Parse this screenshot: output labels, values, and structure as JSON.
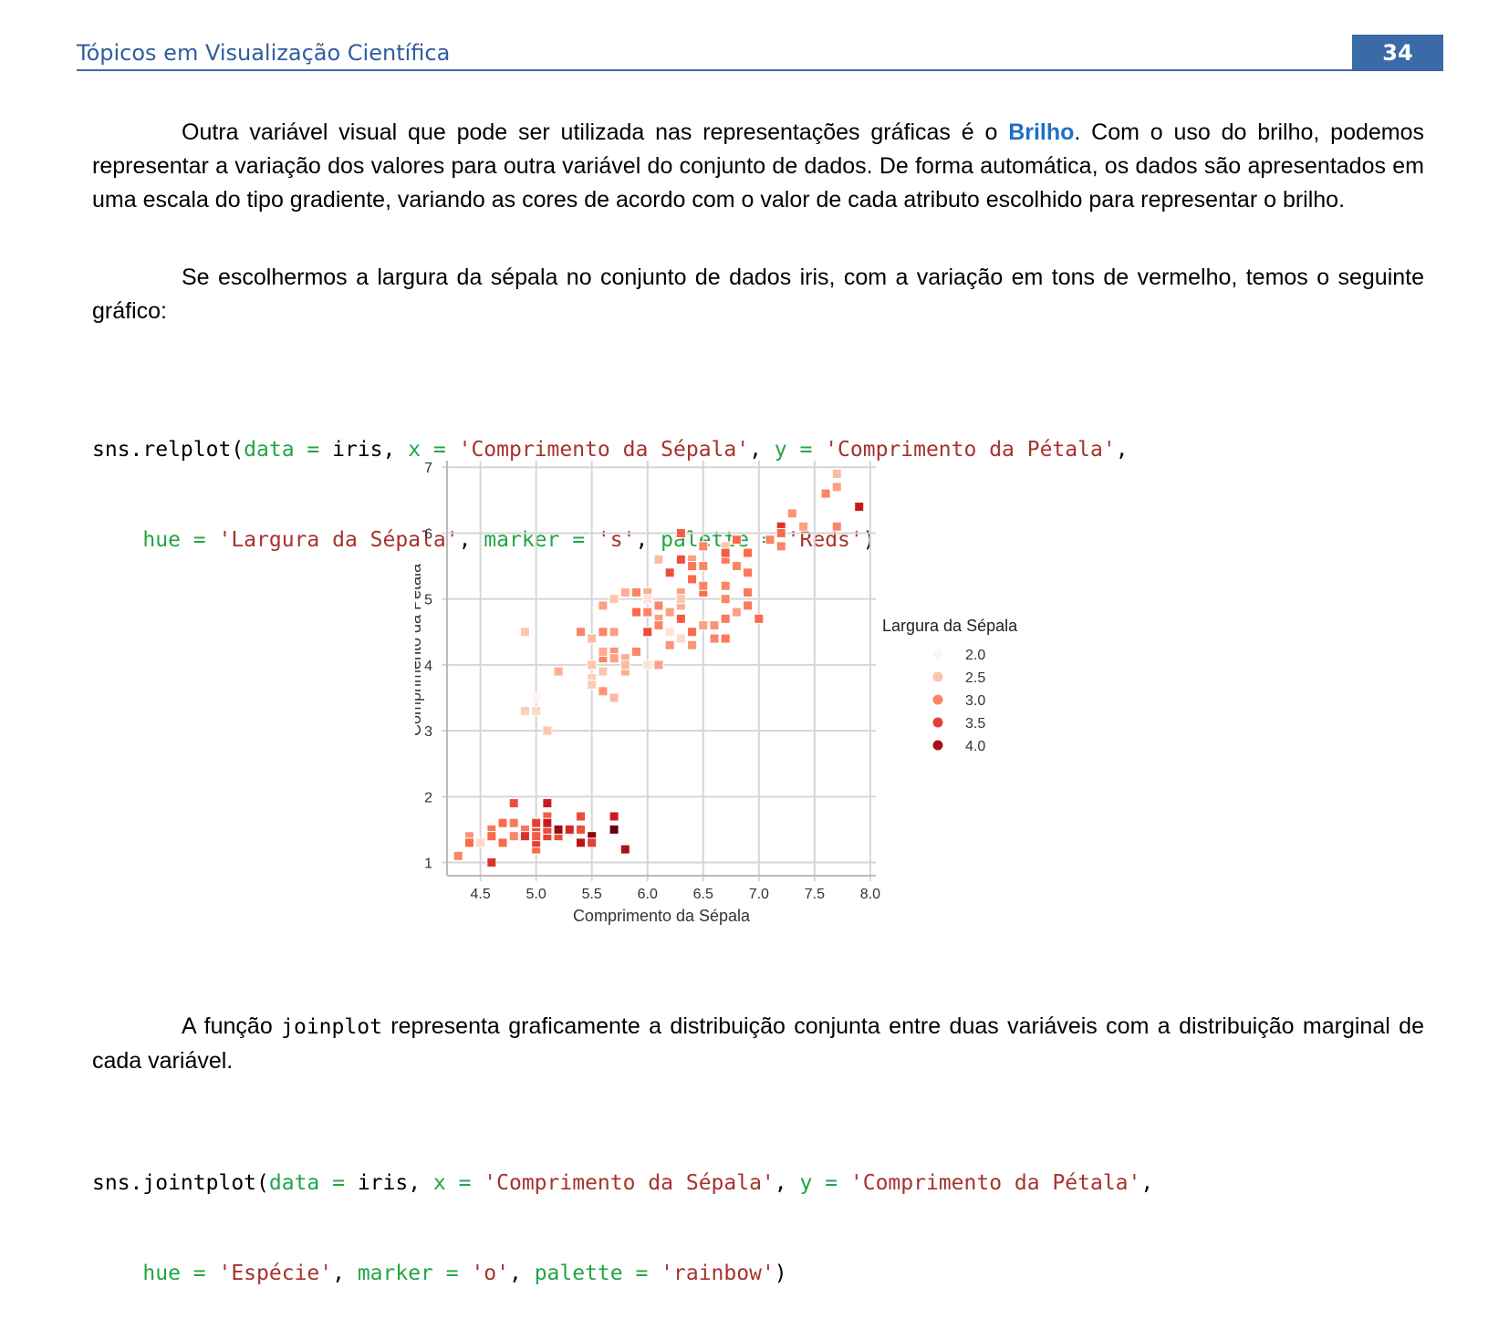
{
  "header": {
    "title": "Tópicos em Visualização Científica",
    "page_number": "34"
  },
  "paragraph1": {
    "before": "Outra variável visual que pode ser utilizada nas representações gráficas é o ",
    "highlight": "Brilho",
    "after": ". Com o uso do brilho, podemos representar a variação dos valores para outra variável do conjunto de dados. De forma automática, os dados são apresentados em uma escala do tipo gradiente, variando as cores de acordo com o valor de cada atributo escolhido para representar o brilho."
  },
  "paragraph2": "Se escolhermos a largura da sépala no conjunto de dados iris, com a variação em tons de vermelho, temos o seguinte gráfico:",
  "code1": {
    "line1": [
      {
        "t": "sns.relplot(",
        "c": "fn"
      },
      {
        "t": "data = ",
        "c": "kw"
      },
      {
        "t": "iris, ",
        "c": "fn"
      },
      {
        "t": "x = ",
        "c": "kw"
      },
      {
        "t": "'Comprimento da Sépala'",
        "c": "str"
      },
      {
        "t": ", ",
        "c": "fn"
      },
      {
        "t": "y = ",
        "c": "kw"
      },
      {
        "t": "'Comprimento da Pétala'",
        "c": "str"
      },
      {
        "t": ",",
        "c": "fn"
      }
    ],
    "line2": [
      {
        "t": "    ",
        "c": "fn"
      },
      {
        "t": "hue = ",
        "c": "kw"
      },
      {
        "t": "'Largura da Sépala'",
        "c": "str"
      },
      {
        "t": ", ",
        "c": "fn"
      },
      {
        "t": "marker = ",
        "c": "kw"
      },
      {
        "t": "'s'",
        "c": "str"
      },
      {
        "t": ", ",
        "c": "fn"
      },
      {
        "t": "palette = ",
        "c": "kw"
      },
      {
        "t": "'Reds'",
        "c": "str"
      },
      {
        "t": ")",
        "c": "fn"
      }
    ]
  },
  "paragraph3": {
    "before": "A função ",
    "code": "joinplot",
    "after": " representa graficamente a distribuição conjunta entre duas variáveis com a distribuição marginal de cada variável."
  },
  "code2": {
    "line1": [
      {
        "t": "sns.jointplot(",
        "c": "fn"
      },
      {
        "t": "data = ",
        "c": "kw"
      },
      {
        "t": "iris, ",
        "c": "fn"
      },
      {
        "t": "x = ",
        "c": "kw"
      },
      {
        "t": "'Comprimento da Sépala'",
        "c": "str"
      },
      {
        "t": ", ",
        "c": "fn"
      },
      {
        "t": "y = ",
        "c": "kw"
      },
      {
        "t": "'Comprimento da Pétala'",
        "c": "str"
      },
      {
        "t": ",",
        "c": "fn"
      }
    ],
    "line2": [
      {
        "t": "    ",
        "c": "fn"
      },
      {
        "t": "hue = ",
        "c": "kw"
      },
      {
        "t": "'Espécie'",
        "c": "str"
      },
      {
        "t": ", ",
        "c": "fn"
      },
      {
        "t": "marker = ",
        "c": "kw"
      },
      {
        "t": "'o'",
        "c": "str"
      },
      {
        "t": ", ",
        "c": "fn"
      },
      {
        "t": "palette = ",
        "c": "kw"
      },
      {
        "t": "'rainbow'",
        "c": "str"
      },
      {
        "t": ")",
        "c": "fn"
      }
    ]
  },
  "chart_data": {
    "type": "scatter",
    "marker": "square",
    "palette": "Reds",
    "xlabel": "Comprimento da Sépala",
    "ylabel": "Comprimento da Pétala",
    "xlim": [
      4.2,
      8.05
    ],
    "ylim": [
      0.8,
      7.1
    ],
    "xticks": [
      4.5,
      5.0,
      5.5,
      6.0,
      6.5,
      7.0,
      7.5,
      8.0
    ],
    "xtick_labels": [
      "4.5",
      "5.0",
      "5.5",
      "6.0",
      "6.5",
      "7.0",
      "7.5",
      "8.0"
    ],
    "yticks": [
      1,
      2,
      3,
      4,
      5,
      6,
      7
    ],
    "ytick_labels": [
      "1",
      "2",
      "3",
      "4",
      "5",
      "6",
      "7"
    ],
    "grid": true,
    "legend": {
      "title": "Largura da Sépala",
      "placement": "right",
      "entries": [
        {
          "label": "2.0",
          "value": 2.0
        },
        {
          "label": "2.5",
          "value": 2.5
        },
        {
          "label": "3.0",
          "value": 3.0
        },
        {
          "label": "3.5",
          "value": 3.5
        },
        {
          "label": "4.0",
          "value": 4.0
        }
      ]
    },
    "color_scale": {
      "min": 2.0,
      "max": 4.4,
      "colors": [
        "#fff5f0",
        "#fcbba1",
        "#fb6a4a",
        "#cb181d",
        "#67000d"
      ]
    },
    "points": [
      [
        5.1,
        1.4,
        3.5
      ],
      [
        4.9,
        1.4,
        3.0
      ],
      [
        4.7,
        1.3,
        3.2
      ],
      [
        4.6,
        1.5,
        3.1
      ],
      [
        5.0,
        1.4,
        3.6
      ],
      [
        5.4,
        1.7,
        3.9
      ],
      [
        4.6,
        1.4,
        3.4
      ],
      [
        5.0,
        1.5,
        3.4
      ],
      [
        4.4,
        1.4,
        2.9
      ],
      [
        4.9,
        1.5,
        3.1
      ],
      [
        5.4,
        1.5,
        3.7
      ],
      [
        4.8,
        1.6,
        3.4
      ],
      [
        4.8,
        1.4,
        3.0
      ],
      [
        4.3,
        1.1,
        3.0
      ],
      [
        5.8,
        1.2,
        4.0
      ],
      [
        5.7,
        1.5,
        4.4
      ],
      [
        5.4,
        1.3,
        3.9
      ],
      [
        5.1,
        1.4,
        3.5
      ],
      [
        5.7,
        1.7,
        3.8
      ],
      [
        5.1,
        1.5,
        3.8
      ],
      [
        5.4,
        1.7,
        3.4
      ],
      [
        5.1,
        1.5,
        3.7
      ],
      [
        4.6,
        1.0,
        3.6
      ],
      [
        5.1,
        1.7,
        3.3
      ],
      [
        4.8,
        1.9,
        3.4
      ],
      [
        5.0,
        1.6,
        3.0
      ],
      [
        5.0,
        1.6,
        3.4
      ],
      [
        5.2,
        1.5,
        3.5
      ],
      [
        5.2,
        1.4,
        3.4
      ],
      [
        4.7,
        1.6,
        3.2
      ],
      [
        4.8,
        1.6,
        3.1
      ],
      [
        5.4,
        1.5,
        3.4
      ],
      [
        5.2,
        1.5,
        4.1
      ],
      [
        5.5,
        1.4,
        4.2
      ],
      [
        4.9,
        1.5,
        3.1
      ],
      [
        5.0,
        1.2,
        3.2
      ],
      [
        5.5,
        1.3,
        3.5
      ],
      [
        4.9,
        1.4,
        3.6
      ],
      [
        4.4,
        1.3,
        3.0
      ],
      [
        5.1,
        1.5,
        3.4
      ],
      [
        5.0,
        1.3,
        3.5
      ],
      [
        4.5,
        1.3,
        2.3
      ],
      [
        4.4,
        1.3,
        3.2
      ],
      [
        5.0,
        1.6,
        3.5
      ],
      [
        5.1,
        1.9,
        3.8
      ],
      [
        4.8,
        1.4,
        3.0
      ],
      [
        5.1,
        1.6,
        3.8
      ],
      [
        4.6,
        1.4,
        3.2
      ],
      [
        5.3,
        1.5,
        3.7
      ],
      [
        5.0,
        1.4,
        3.3
      ],
      [
        7.0,
        4.7,
        3.2
      ],
      [
        6.4,
        4.5,
        3.2
      ],
      [
        6.9,
        4.9,
        3.1
      ],
      [
        5.5,
        4.0,
        2.3
      ],
      [
        6.5,
        4.6,
        2.8
      ],
      [
        5.7,
        4.5,
        2.8
      ],
      [
        6.3,
        4.7,
        3.3
      ],
      [
        4.9,
        3.3,
        2.4
      ],
      [
        6.6,
        4.6,
        2.9
      ],
      [
        5.2,
        3.9,
        2.7
      ],
      [
        5.0,
        3.5,
        2.0
      ],
      [
        5.9,
        4.2,
        3.0
      ],
      [
        6.0,
        4.0,
        2.2
      ],
      [
        6.1,
        4.7,
        2.9
      ],
      [
        5.6,
        3.6,
        2.9
      ],
      [
        6.7,
        4.4,
        3.1
      ],
      [
        5.6,
        4.5,
        3.0
      ],
      [
        5.8,
        4.1,
        2.7
      ],
      [
        6.2,
        4.5,
        2.2
      ],
      [
        5.6,
        3.9,
        2.5
      ],
      [
        5.9,
        4.8,
        3.2
      ],
      [
        6.1,
        4.0,
        2.8
      ],
      [
        6.3,
        4.9,
        2.5
      ],
      [
        6.1,
        4.7,
        2.8
      ],
      [
        6.4,
        4.3,
        2.9
      ],
      [
        6.6,
        4.4,
        3.0
      ],
      [
        6.8,
        4.8,
        2.8
      ],
      [
        6.7,
        5.0,
        3.0
      ],
      [
        6.0,
        4.5,
        2.9
      ],
      [
        5.7,
        3.5,
        2.6
      ],
      [
        5.5,
        3.8,
        2.4
      ],
      [
        5.5,
        3.7,
        2.4
      ],
      [
        5.8,
        3.9,
        2.7
      ],
      [
        6.0,
        5.1,
        2.7
      ],
      [
        5.4,
        4.5,
        3.0
      ],
      [
        6.0,
        4.5,
        3.4
      ],
      [
        6.7,
        4.7,
        3.1
      ],
      [
        6.3,
        4.4,
        2.3
      ],
      [
        5.6,
        4.1,
        3.0
      ],
      [
        5.5,
        4.0,
        2.5
      ],
      [
        5.5,
        4.4,
        2.6
      ],
      [
        6.1,
        4.6,
        3.0
      ],
      [
        5.8,
        4.0,
        2.6
      ],
      [
        5.0,
        3.3,
        2.3
      ],
      [
        5.6,
        4.2,
        2.7
      ],
      [
        5.7,
        4.2,
        3.0
      ],
      [
        5.7,
        4.2,
        2.9
      ],
      [
        6.2,
        4.3,
        2.9
      ],
      [
        5.1,
        3.0,
        2.5
      ],
      [
        5.7,
        4.1,
        2.8
      ],
      [
        6.3,
        6.0,
        3.3
      ],
      [
        5.8,
        5.1,
        2.7
      ],
      [
        7.1,
        5.9,
        3.0
      ],
      [
        6.3,
        5.6,
        2.9
      ],
      [
        6.5,
        5.8,
        3.0
      ],
      [
        7.6,
        6.6,
        3.0
      ],
      [
        4.9,
        4.5,
        2.5
      ],
      [
        7.3,
        6.3,
        2.9
      ],
      [
        6.7,
        5.8,
        2.5
      ],
      [
        7.2,
        6.1,
        3.6
      ],
      [
        6.5,
        5.1,
        3.2
      ],
      [
        6.4,
        5.3,
        2.7
      ],
      [
        6.8,
        5.5,
        3.0
      ],
      [
        5.7,
        5.0,
        2.5
      ],
      [
        5.8,
        5.1,
        2.8
      ],
      [
        6.4,
        5.3,
        3.2
      ],
      [
        6.5,
        5.5,
        3.0
      ],
      [
        7.7,
        6.7,
        3.8
      ],
      [
        7.7,
        6.9,
        2.6
      ],
      [
        6.0,
        5.0,
        2.2
      ],
      [
        6.9,
        5.7,
        3.2
      ],
      [
        5.6,
        4.9,
        2.8
      ],
      [
        7.7,
        6.7,
        2.8
      ],
      [
        6.3,
        4.9,
        2.7
      ],
      [
        6.7,
        5.7,
        3.3
      ],
      [
        7.2,
        6.0,
        3.2
      ],
      [
        6.2,
        4.8,
        2.8
      ],
      [
        6.1,
        4.9,
        3.0
      ],
      [
        6.4,
        5.6,
        2.8
      ],
      [
        7.2,
        5.8,
        3.0
      ],
      [
        7.4,
        6.1,
        2.8
      ],
      [
        7.9,
        6.4,
        3.8
      ],
      [
        6.4,
        5.6,
        2.8
      ],
      [
        6.3,
        5.1,
        2.8
      ],
      [
        6.1,
        5.6,
        2.6
      ],
      [
        7.7,
        6.1,
        3.0
      ],
      [
        6.3,
        5.6,
        3.4
      ],
      [
        6.4,
        5.5,
        3.1
      ],
      [
        6.0,
        4.8,
        3.0
      ],
      [
        6.9,
        5.4,
        3.1
      ],
      [
        6.7,
        5.6,
        3.1
      ],
      [
        6.9,
        5.1,
        3.1
      ],
      [
        5.8,
        5.1,
        2.7
      ],
      [
        6.8,
        5.9,
        3.2
      ],
      [
        6.7,
        5.7,
        3.3
      ],
      [
        6.7,
        5.2,
        3.0
      ],
      [
        6.3,
        5.0,
        2.5
      ],
      [
        6.5,
        5.2,
        3.0
      ],
      [
        6.2,
        5.4,
        3.4
      ],
      [
        5.9,
        5.1,
        3.0
      ]
    ]
  }
}
